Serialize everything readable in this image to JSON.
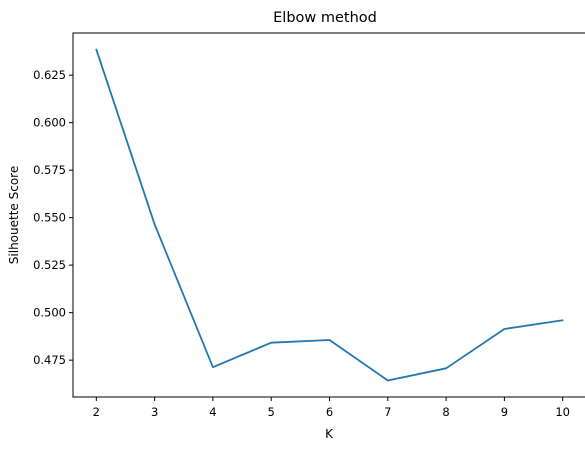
{
  "chart_data": {
    "type": "line",
    "title": "Elbow method",
    "xlabel": "K",
    "ylabel": "Silhouette Score",
    "x": [
      2,
      3,
      4,
      5,
      6,
      7,
      8,
      9,
      10
    ],
    "series": [
      {
        "values": [
          0.6385,
          0.5465,
          0.4713,
          0.4842,
          0.4856,
          0.4643,
          0.4707,
          0.4914,
          0.496
        ]
      }
    ],
    "xticks": [
      2,
      3,
      4,
      5,
      6,
      7,
      8,
      9,
      10
    ],
    "xtick_labels": [
      "2",
      "3",
      "4",
      "5",
      "6",
      "7",
      "8",
      "9",
      "10"
    ],
    "yticks": [
      0.475,
      0.5,
      0.525,
      0.55,
      0.575,
      0.6,
      0.625
    ],
    "ytick_labels": [
      "0.475",
      "0.500",
      "0.525",
      "0.550",
      "0.575",
      "0.600",
      "0.625"
    ],
    "xlim": [
      1.6,
      10.4
    ],
    "ylim": [
      0.4556,
      0.6472
    ],
    "grid": false,
    "line_color": "#1f77b4"
  }
}
